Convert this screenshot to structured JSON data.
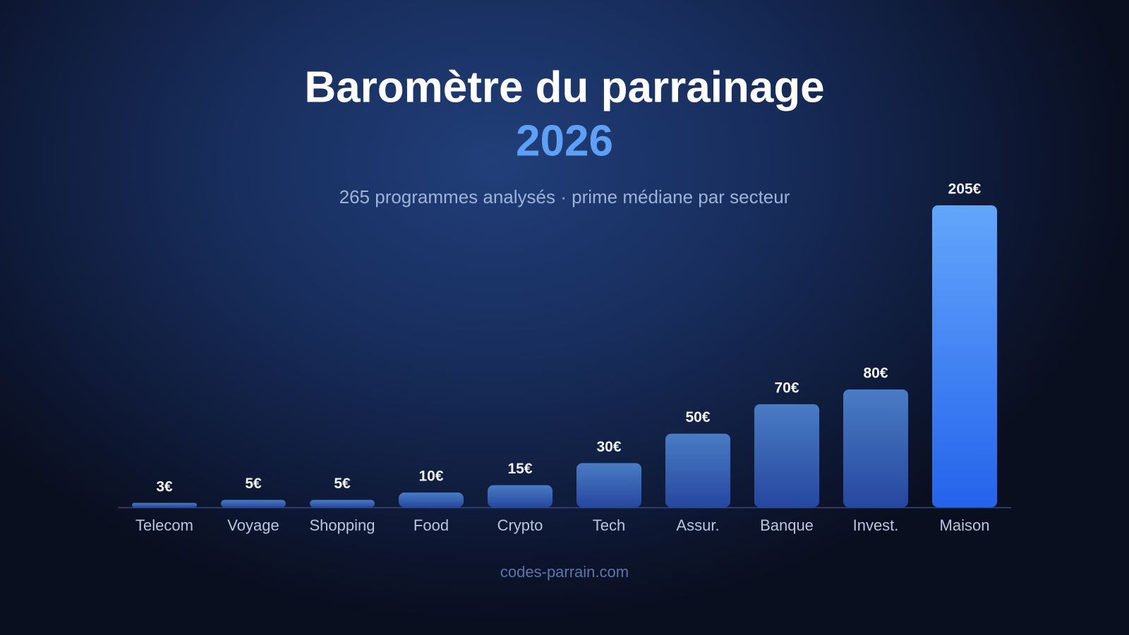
{
  "chart_data": {
    "type": "bar",
    "title": "Baromètre du parrainage",
    "title_year": "2026",
    "subtitle": "265 programmes analysés · prime médiane par secteur",
    "source": "codes-parrain.com",
    "categories": [
      "Telecom",
      "Voyage",
      "Shopping",
      "Food",
      "Crypto",
      "Tech",
      "Assur.",
      "Banque",
      "Invest.",
      "Maison"
    ],
    "values": [
      3,
      5,
      5,
      10,
      15,
      30,
      50,
      70,
      80,
      205
    ],
    "value_labels": [
      "3€",
      "5€",
      "5€",
      "10€",
      "15€",
      "30€",
      "50€",
      "70€",
      "80€",
      "205€"
    ],
    "color": "#3a66b6",
    "highlight": "Maison",
    "highlight_color": "#3b82f6"
  }
}
